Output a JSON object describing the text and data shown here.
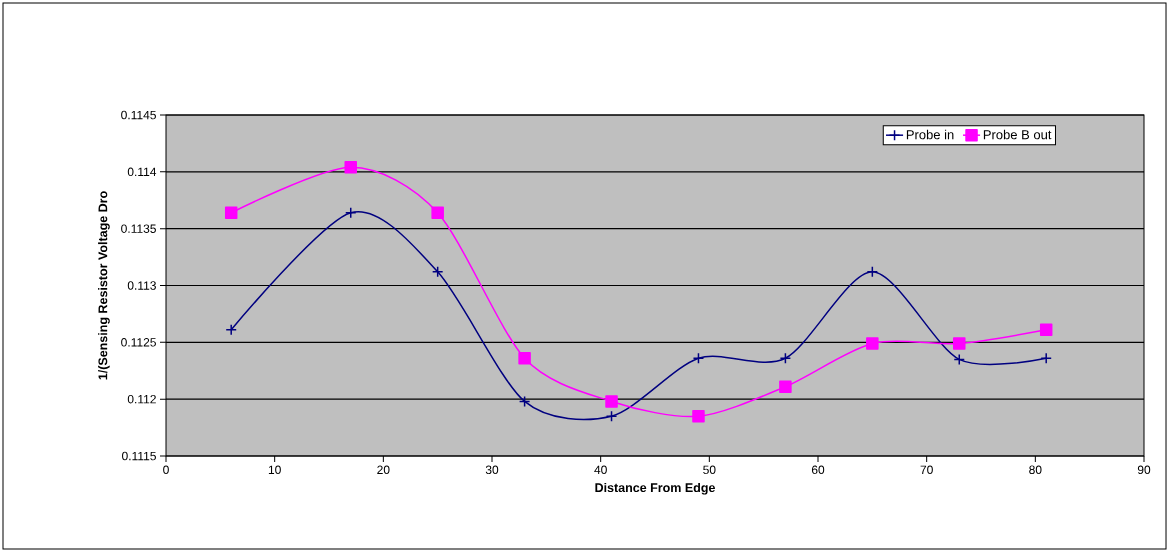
{
  "chart_data": {
    "type": "line",
    "xlabel": "Distance From Edge",
    "ylabel": "1/(Sensing Resistor Voltage Dro",
    "x": [
      6,
      17,
      25,
      33,
      41,
      49,
      57,
      65,
      73,
      81
    ],
    "series": [
      {
        "name": "Probe in",
        "color": "#000080",
        "marker": "cross",
        "values": [
          0.11261,
          0.11364,
          0.11312,
          0.11198,
          0.11185,
          0.11236,
          0.11236,
          0.11312,
          0.11235,
          0.11236
        ]
      },
      {
        "name": "Probe B out",
        "color": "#ff00ff",
        "marker": "square",
        "values": [
          0.11364,
          0.11404,
          0.11364,
          0.11236,
          0.11198,
          0.11185,
          0.11211,
          0.11249,
          0.11249,
          0.11261
        ]
      }
    ],
    "xlim": [
      0,
      90
    ],
    "xticks": [
      0,
      10,
      20,
      30,
      40,
      50,
      60,
      70,
      80,
      90
    ],
    "ylim": [
      0.1115,
      0.1145
    ],
    "yticks": [
      0.1115,
      0.112,
      0.1125,
      0.113,
      0.1135,
      0.114,
      0.1145
    ],
    "grid": "y",
    "legend": "top right",
    "line_style": "solid"
  }
}
